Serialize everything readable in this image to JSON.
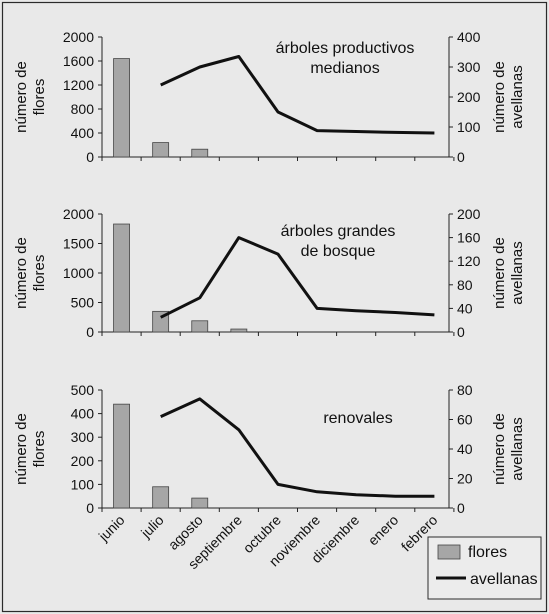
{
  "colors": {
    "background": "#e9e9e9",
    "panel_border": "#2b2b2b",
    "bar_fill": "#a6a6a6",
    "bar_stroke": "#444444",
    "line": "#111111"
  },
  "legend": {
    "flores": "flores",
    "avellanas": "avellanas"
  },
  "x_categories": [
    "junio",
    "julio",
    "agosto",
    "septiembre",
    "octubre",
    "noviembre",
    "diciembre",
    "enero",
    "febrero"
  ],
  "chart_data": [
    {
      "type": "bar+line",
      "title": "árboles productivos medianos",
      "title_lines": [
        "árboles productivos",
        "medianos"
      ],
      "ylabel_left": [
        "número de",
        "flores"
      ],
      "ylabel_right": [
        "número de",
        "avellanas"
      ],
      "ylim_left": [
        0,
        2000
      ],
      "yticks_left": [
        0,
        400,
        800,
        1200,
        1600,
        2000
      ],
      "ylim_right": [
        0,
        400
      ],
      "yticks_right": [
        0,
        100,
        200,
        300,
        400
      ],
      "series": [
        {
          "name": "flores",
          "kind": "bar",
          "axis": "left",
          "values": [
            1640,
            240,
            130,
            null,
            null,
            null,
            null,
            null,
            null
          ]
        },
        {
          "name": "avellanas",
          "kind": "line",
          "axis": "right",
          "values": [
            null,
            240,
            300,
            335,
            150,
            88,
            85,
            82,
            80
          ]
        }
      ]
    },
    {
      "type": "bar+line",
      "title": "árboles grandes de bosque",
      "title_lines": [
        "árboles grandes",
        "de bosque"
      ],
      "ylabel_left": [
        "número de",
        "flores"
      ],
      "ylabel_right": [
        "número de",
        "avellanas"
      ],
      "ylim_left": [
        0,
        2000
      ],
      "yticks_left": [
        0,
        500,
        1000,
        1500,
        2000
      ],
      "ylim_right": [
        0,
        200
      ],
      "yticks_right": [
        0,
        40,
        80,
        120,
        160,
        200
      ],
      "series": [
        {
          "name": "flores",
          "kind": "bar",
          "axis": "left",
          "values": [
            1830,
            350,
            190,
            50,
            null,
            null,
            null,
            null,
            null
          ]
        },
        {
          "name": "avellanas",
          "kind": "line",
          "axis": "right",
          "values": [
            null,
            25,
            58,
            160,
            132,
            40,
            36,
            33,
            29
          ]
        }
      ]
    },
    {
      "type": "bar+line",
      "title": "renovales",
      "title_lines": [
        "renovales"
      ],
      "ylabel_left": [
        "número de",
        "flores"
      ],
      "ylabel_right": [
        "número de",
        "avellanas"
      ],
      "ylim_left": [
        0,
        500
      ],
      "yticks_left": [
        0,
        100,
        200,
        300,
        400,
        500
      ],
      "ylim_right": [
        0,
        80
      ],
      "yticks_right": [
        0,
        20,
        40,
        60,
        80
      ],
      "series": [
        {
          "name": "flores",
          "kind": "bar",
          "axis": "left",
          "values": [
            440,
            90,
            42,
            null,
            null,
            null,
            null,
            null,
            null
          ]
        },
        {
          "name": "avellanas",
          "kind": "line",
          "axis": "right",
          "values": [
            null,
            62,
            74,
            53,
            16,
            11,
            9,
            8,
            8
          ]
        }
      ]
    }
  ]
}
